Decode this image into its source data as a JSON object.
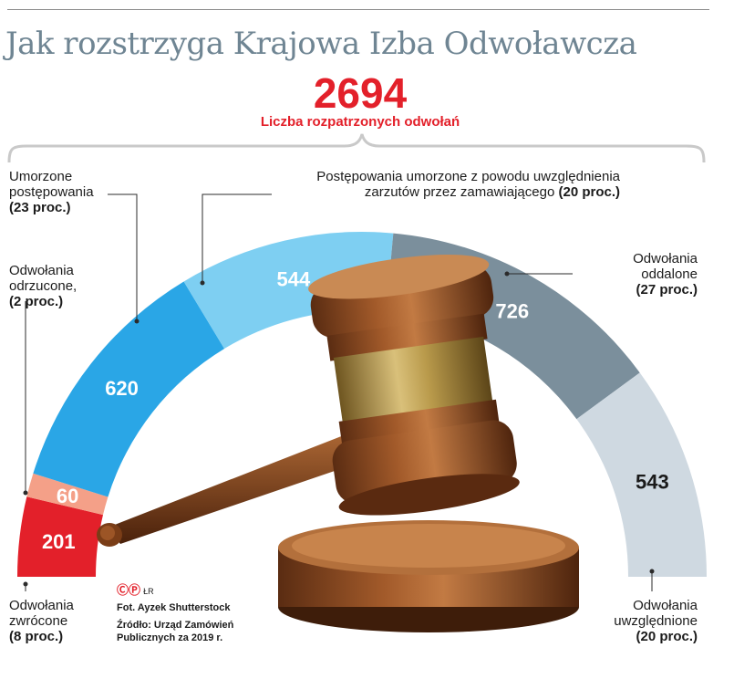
{
  "title": "Jak rozstrzyga Krajowa Izba Odwoławcza",
  "total": {
    "value": "2694",
    "label": "Liczba rozpatrzonych odwołań"
  },
  "chart_data": {
    "type": "pie",
    "title": "Jak rozstrzyga Krajowa Izba Odwoławcza",
    "total": 2694,
    "segments": [
      {
        "value": 201,
        "label_lines": [
          "Odwołania",
          "zwrócone"
        ],
        "pct": "(8 proc.)",
        "color": "#e3202a"
      },
      {
        "value": 60,
        "label_lines": [
          "Odwołania",
          "odrzucone,"
        ],
        "pct": "(2 proc.)",
        "color": "#f4a088"
      },
      {
        "value": 620,
        "label_lines": [
          "Umorzone",
          "postępowania"
        ],
        "pct": "(23 proc.)",
        "color": "#2aa6e6"
      },
      {
        "value": 544,
        "label_lines": [
          "Postępowania umorzone z powodu uwzględnienia",
          "zarzutów przez zamawiającego"
        ],
        "pct": "(20 proc.)",
        "color": "#7ecff2"
      },
      {
        "value": 726,
        "label_lines": [
          "Odwołania",
          "oddalone"
        ],
        "pct": "(27 proc.)",
        "color": "#7b8f9c"
      },
      {
        "value": 543,
        "label_lines": [
          "Odwołania",
          "uwzględnione"
        ],
        "pct": "(20 proc.)",
        "color": "#cfd9e1"
      }
    ]
  },
  "credits": {
    "logo": "ⒸⓅ",
    "logo_suffix": "ŁR",
    "photo": "Fot. Ayzek Shutterstock",
    "source_line1": "Źródło: Urząd Zamówień",
    "source_line2": "Publicznych za 2019 r."
  },
  "colors": {
    "accent": "#e3202a",
    "title": "#6f8593",
    "wood": "#8a4a22",
    "brass": "#b89a4a"
  }
}
